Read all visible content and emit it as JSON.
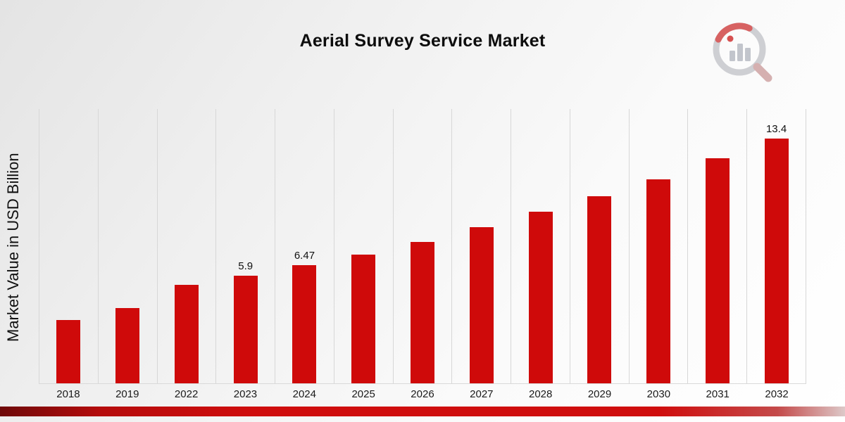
{
  "page": {
    "title": "Aerial Survey Service Market",
    "logo_name": "market-research-logo"
  },
  "chart_data": {
    "type": "bar",
    "title": "Aerial Survey Service Market",
    "xlabel": "",
    "ylabel": "Market Value in USD Billion",
    "categories": [
      "2018",
      "2019",
      "2022",
      "2023",
      "2024",
      "2025",
      "2026",
      "2027",
      "2028",
      "2029",
      "2030",
      "2031",
      "2032"
    ],
    "values": [
      3.45,
      4.1,
      5.4,
      5.9,
      6.47,
      7.05,
      7.75,
      8.55,
      9.4,
      10.25,
      11.15,
      12.3,
      13.4
    ],
    "data_labels": [
      "",
      "",
      "",
      "5.9",
      "6.47",
      "",
      "",
      "",
      "",
      "",
      "",
      "",
      "13.4"
    ],
    "bar_color": "#cf0a0a",
    "ylim": [
      0,
      15
    ],
    "grid": "vertical",
    "legend": "none"
  }
}
